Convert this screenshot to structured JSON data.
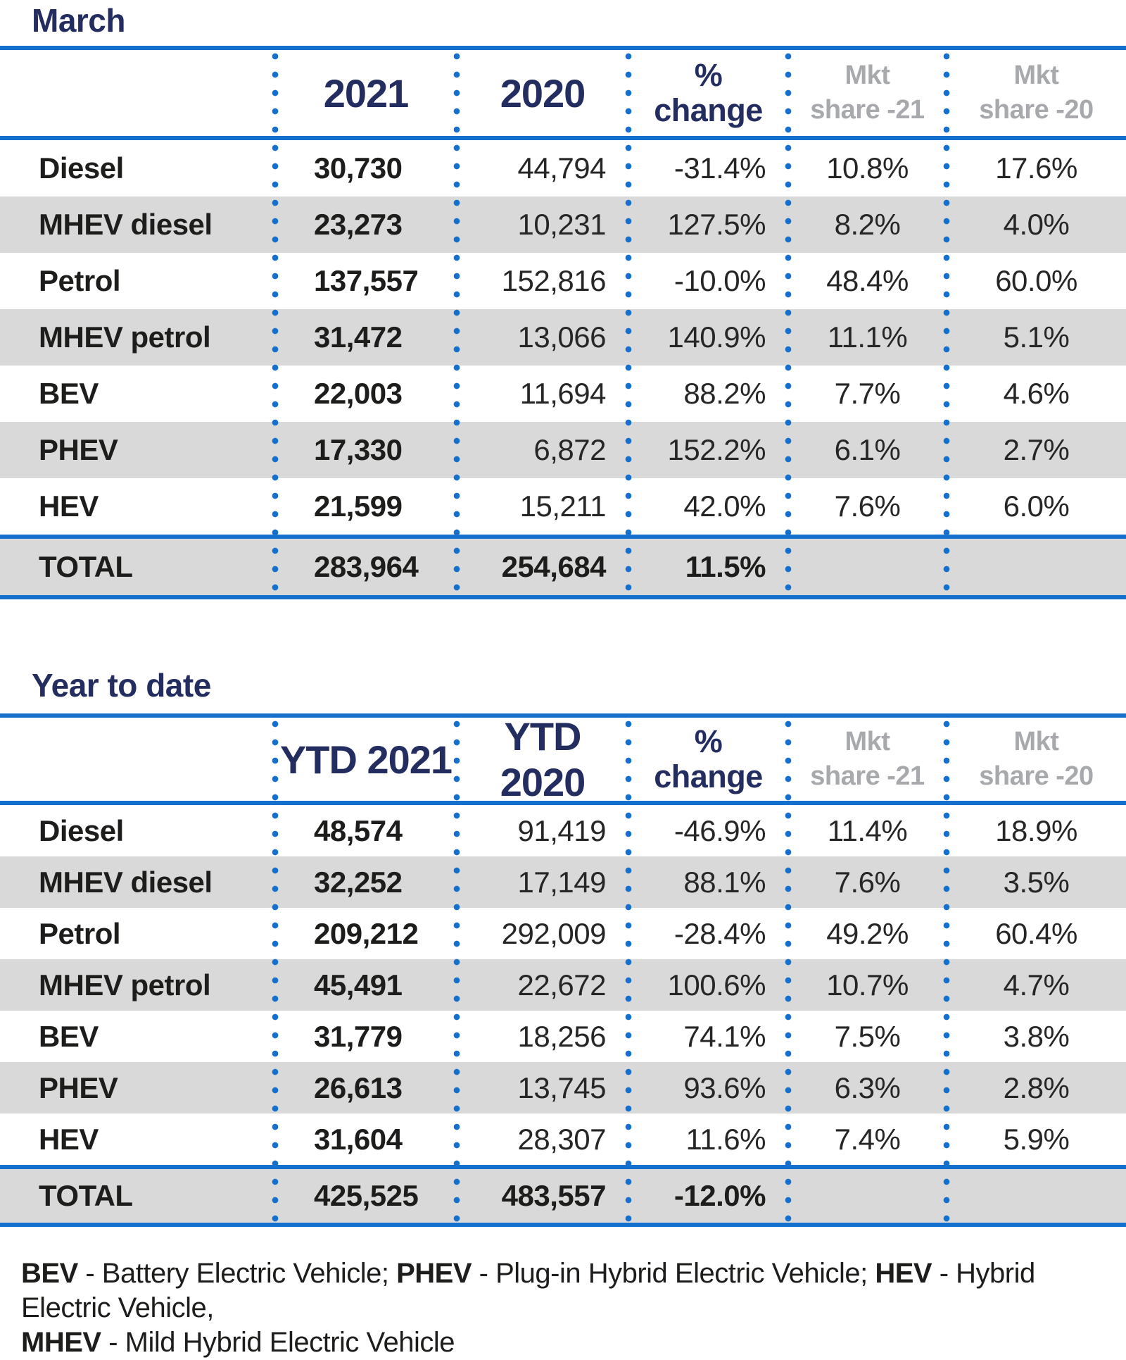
{
  "colors": {
    "accent_blue": "#1570cd",
    "navy_heading": "#232d5f",
    "grey_band": "#d9d9d9",
    "grey_header_text": "#a7a9ac",
    "body_text": "#1d1d1b"
  },
  "chart_data": [
    {
      "type": "table",
      "title": "March",
      "col_headers": [
        "2021",
        "2020",
        "%\nchange",
        "Mkt\nshare -21",
        "Mkt\nshare -20"
      ],
      "rows": [
        [
          "Diesel",
          "30,730",
          "44,794",
          "-31.4%",
          "10.8%",
          "17.6%"
        ],
        [
          "MHEV diesel",
          "23,273",
          "10,231",
          "127.5%",
          "8.2%",
          "4.0%"
        ],
        [
          "Petrol",
          "137,557",
          "152,816",
          "-10.0%",
          "48.4%",
          "60.0%"
        ],
        [
          "MHEV petrol",
          "31,472",
          "13,066",
          "140.9%",
          "11.1%",
          "5.1%"
        ],
        [
          "BEV",
          "22,003",
          "11,694",
          "88.2%",
          "7.7%",
          "4.6%"
        ],
        [
          "PHEV",
          "17,330",
          "6,872",
          "152.2%",
          "6.1%",
          "2.7%"
        ],
        [
          "HEV",
          "21,599",
          "15,211",
          "42.0%",
          "7.6%",
          "6.0%"
        ]
      ],
      "total": [
        "TOTAL",
        "283,964",
        "254,684",
        "11.5%",
        "",
        ""
      ]
    },
    {
      "type": "table",
      "title": "Year to date",
      "col_headers": [
        "YTD 2021",
        "YTD 2020",
        "%\nchange",
        "Mkt\nshare -21",
        "Mkt\nshare -20"
      ],
      "rows": [
        [
          "Diesel",
          "48,574",
          "91,419",
          "-46.9%",
          "11.4%",
          "18.9%"
        ],
        [
          "MHEV diesel",
          "32,252",
          "17,149",
          "88.1%",
          "7.6%",
          "3.5%"
        ],
        [
          "Petrol",
          "209,212",
          "292,009",
          "-28.4%",
          "49.2%",
          "60.4%"
        ],
        [
          "MHEV petrol",
          "45,491",
          "22,672",
          "100.6%",
          "10.7%",
          "4.7%"
        ],
        [
          "BEV",
          "31,779",
          "18,256",
          "74.1%",
          "7.5%",
          "3.8%"
        ],
        [
          "PHEV",
          "26,613",
          "13,745",
          "93.6%",
          "6.3%",
          "2.8%"
        ],
        [
          "HEV",
          "31,604",
          "28,307",
          "11.6%",
          "7.4%",
          "5.9%"
        ]
      ],
      "total": [
        "TOTAL",
        "425,525",
        "483,557",
        "-12.0%",
        "",
        ""
      ]
    }
  ],
  "footnote": {
    "lines": [
      [
        {
          "text": "BEV",
          "bold": true
        },
        {
          "text": " - Battery Electric Vehicle; ",
          "bold": false
        },
        {
          "text": "PHEV",
          "bold": true
        },
        {
          "text": " - Plug-in Hybrid Electric Vehicle; ",
          "bold": false
        },
        {
          "text": "HEV",
          "bold": true
        },
        {
          "text": " - Hybrid Electric Vehicle,",
          "bold": false
        }
      ],
      [
        {
          "text": "MHEV",
          "bold": true
        },
        {
          "text": " - Mild Hybrid Electric Vehicle",
          "bold": false
        }
      ]
    ]
  }
}
